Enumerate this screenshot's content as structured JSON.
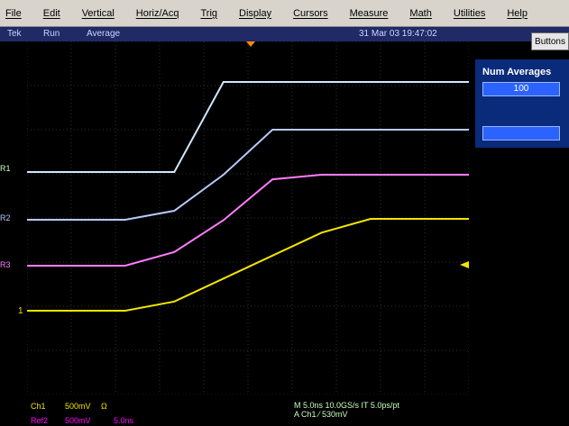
{
  "menu": {
    "items": [
      "File",
      "Edit",
      "Vertical",
      "Horiz/Acq",
      "Trig",
      "Display",
      "Cursors",
      "Measure",
      "Math",
      "Utilities",
      "Help"
    ]
  },
  "status": {
    "brand": "Tek",
    "run": "Run",
    "mode": "Average",
    "timestamp": "31 Mar 03 19:47:02"
  },
  "buttons": {
    "label": "Buttons"
  },
  "side_panel": {
    "title": "Num Averages",
    "value": "100",
    "second_value": ""
  },
  "markers": {
    "r1": "R1",
    "r2": "R2",
    "r3": "R3",
    "ch1": "1"
  },
  "bottom": {
    "ch1_label": "Ch1",
    "ch1_scale": "500mV",
    "ch1_omega": "Ω",
    "ref2_label": "Ref2",
    "ref2_scale": "500mV",
    "ref2_time": "5.0ns",
    "acq_line1": "M 5.0ns 10.0GS/s IT 5.0ps/pt",
    "acq_line2": "A  Ch1  ⁄  530mV"
  },
  "colors": {
    "ch1": "#f2e500",
    "ref1": "#cfe8ff",
    "ref2": "#b7c9ff",
    "ref3": "#ff7cff",
    "grid": "#2f2f2f",
    "panel": "#0a2a7a"
  },
  "chart_data": {
    "type": "line",
    "series": [
      {
        "name": "R1",
        "values": [
          0,
          0,
          0,
          0,
          1,
          1,
          1,
          1,
          1,
          1
        ]
      },
      {
        "name": "R2",
        "values": [
          0,
          0,
          0,
          0.1,
          0.5,
          1,
          1,
          1,
          1,
          1
        ]
      },
      {
        "name": "R3",
        "values": [
          0,
          0,
          0,
          0.15,
          0.5,
          0.95,
          1,
          1,
          1,
          1
        ]
      },
      {
        "name": "Ch1",
        "values": [
          0,
          0,
          0,
          0.1,
          0.35,
          0.6,
          0.85,
          1,
          1,
          1
        ]
      }
    ],
    "xlim": [
      0,
      10
    ],
    "ylim": [
      0,
      1
    ],
    "grid": true
  }
}
